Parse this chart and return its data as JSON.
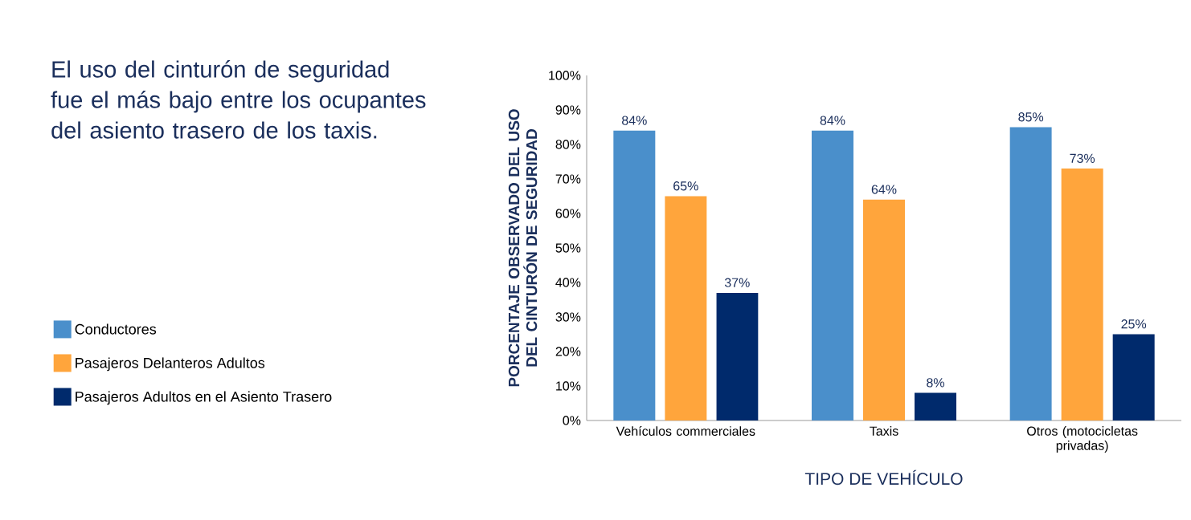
{
  "chart_data": {
    "type": "bar",
    "title": "El uso del cinturón de seguridad fue el más bajo entre los ocupantes del asiento trasero de los taxis.",
    "xlabel": "TIPO DE VEHÍCULO",
    "ylabel": "PORCENTAJE OBSERVADO DEL USO DEL CINTURÓN DE SEGURIDAD",
    "categories": [
      "Vehículos commerciales",
      "Taxis",
      "Otros (motocicletas privadas)"
    ],
    "series": [
      {
        "name": "Conductores",
        "color": "#4a8fcb",
        "values": [
          84,
          84,
          85
        ],
        "value_labels": [
          "84%",
          "84%",
          "85%"
        ]
      },
      {
        "name": "Pasajeros Delanteros Adultos",
        "color": "#ffa53c",
        "values": [
          65,
          64,
          73
        ],
        "value_labels": [
          "65%",
          "64%",
          "73%"
        ]
      },
      {
        "name": "Pasajeros Adultos en el Asiento Trasero",
        "color": "#002a6c",
        "values": [
          37,
          8,
          25
        ],
        "value_labels": [
          "37%",
          "8%",
          "25%"
        ]
      }
    ],
    "ylim": [
      0,
      100
    ],
    "yticks": [
      {
        "value": 0,
        "label": "0%"
      },
      {
        "value": 10,
        "label": "10%"
      },
      {
        "value": 20,
        "label": "20%"
      },
      {
        "value": 30,
        "label": "30%"
      },
      {
        "value": 40,
        "label": "40%"
      },
      {
        "value": 50,
        "label": "50%"
      },
      {
        "value": 60,
        "label": "60%"
      },
      {
        "value": 70,
        "label": "70%"
      },
      {
        "value": 80,
        "label": "80%"
      },
      {
        "value": 90,
        "label": "90%"
      },
      {
        "value": 100,
        "label": "100%"
      }
    ],
    "grid": false,
    "legend": "left"
  }
}
